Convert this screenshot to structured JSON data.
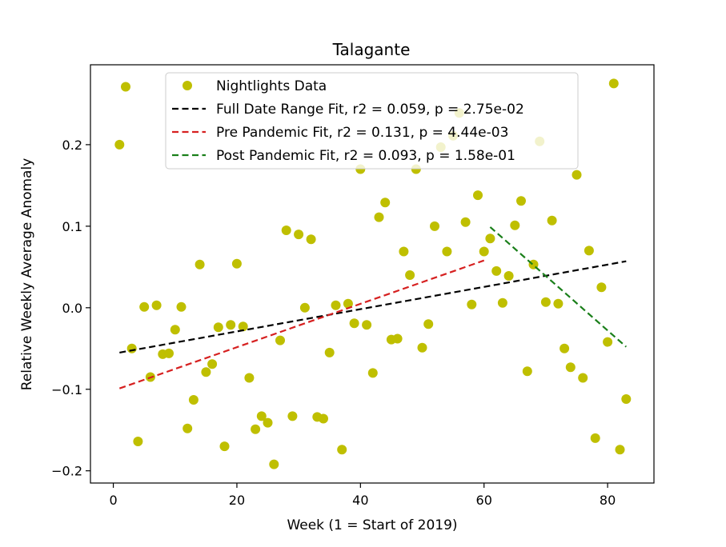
{
  "chart_data": {
    "type": "scatter",
    "title": "Talagante",
    "xlabel": "Week (1 = Start of 2019)",
    "ylabel": "Relative Weekly Average Anomaly",
    "xlim": [
      -3.7,
      87.5
    ],
    "ylim": [
      -0.215,
      0.298
    ],
    "x_ticks": [
      0,
      20,
      40,
      60,
      80
    ],
    "x_tick_labels": [
      "0",
      "20",
      "40",
      "60",
      "80"
    ],
    "y_ticks": [
      -0.2,
      -0.1,
      0.0,
      0.1,
      0.2
    ],
    "y_tick_labels": [
      "−0.2",
      "−0.1",
      "0.0",
      "0.1",
      "0.2"
    ],
    "grid": false,
    "legend_position": "top-center",
    "colors": {
      "points": "#bfbf00",
      "full_fit": "#000000",
      "pre_fit": "#d62020",
      "post_fit": "#1a7f1a"
    },
    "series": [
      {
        "name": "Nightlights Data",
        "kind": "points",
        "points": [
          [
            1,
            0.2
          ],
          [
            2,
            0.271
          ],
          [
            3,
            -0.05
          ],
          [
            4,
            -0.164
          ],
          [
            5,
            0.001
          ],
          [
            6,
            -0.085
          ],
          [
            7,
            0.003
          ],
          [
            8,
            -0.057
          ],
          [
            9,
            -0.056
          ],
          [
            10,
            -0.027
          ],
          [
            11,
            0.001
          ],
          [
            12,
            -0.148
          ],
          [
            13,
            -0.113
          ],
          [
            14,
            0.053
          ],
          [
            15,
            -0.079
          ],
          [
            16,
            -0.069
          ],
          [
            17,
            -0.024
          ],
          [
            18,
            -0.17
          ],
          [
            19,
            -0.021
          ],
          [
            20,
            0.054
          ],
          [
            21,
            -0.023
          ],
          [
            22,
            -0.086
          ],
          [
            23,
            -0.149
          ],
          [
            24,
            -0.133
          ],
          [
            25,
            -0.141
          ],
          [
            26,
            -0.192
          ],
          [
            27,
            -0.04
          ],
          [
            28,
            0.095
          ],
          [
            29,
            -0.133
          ],
          [
            30,
            0.09
          ],
          [
            31,
            0.0
          ],
          [
            32,
            0.084
          ],
          [
            33,
            -0.134
          ],
          [
            34,
            -0.136
          ],
          [
            35,
            -0.055
          ],
          [
            36,
            0.003
          ],
          [
            37,
            -0.174
          ],
          [
            38,
            0.005
          ],
          [
            39,
            -0.019
          ],
          [
            40,
            0.17
          ],
          [
            41,
            -0.021
          ],
          [
            42,
            -0.08
          ],
          [
            43,
            0.111
          ],
          [
            44,
            0.129
          ],
          [
            45,
            -0.039
          ],
          [
            46,
            -0.038
          ],
          [
            47,
            0.069
          ],
          [
            48,
            0.04
          ],
          [
            49,
            0.17
          ],
          [
            50,
            -0.049
          ],
          [
            51,
            -0.02
          ],
          [
            52,
            0.1
          ],
          [
            53,
            0.197
          ],
          [
            54,
            0.069
          ],
          [
            55,
            0.211
          ],
          [
            56,
            0.239
          ],
          [
            57,
            0.105
          ],
          [
            58,
            0.004
          ],
          [
            59,
            0.138
          ],
          [
            60,
            0.069
          ],
          [
            61,
            0.085
          ],
          [
            62,
            0.045
          ],
          [
            63,
            0.006
          ],
          [
            64,
            0.039
          ],
          [
            65,
            0.101
          ],
          [
            66,
            0.131
          ],
          [
            67,
            -0.078
          ],
          [
            68,
            0.053
          ],
          [
            69,
            0.204
          ],
          [
            70,
            0.007
          ],
          [
            71,
            0.107
          ],
          [
            72,
            0.005
          ],
          [
            73,
            -0.05
          ],
          [
            74,
            -0.073
          ],
          [
            75,
            0.163
          ],
          [
            76,
            -0.086
          ],
          [
            77,
            0.07
          ],
          [
            78,
            -0.16
          ],
          [
            79,
            0.025
          ],
          [
            80,
            -0.042
          ],
          [
            81,
            0.275
          ],
          [
            82,
            -0.174
          ],
          [
            83,
            -0.112
          ]
        ]
      },
      {
        "name": "Full Date Range Fit, r2 = 0.059, p = 2.75e-02",
        "kind": "line",
        "x": [
          1,
          83
        ],
        "y": [
          -0.055,
          0.057
        ]
      },
      {
        "name": "Pre Pandemic Fit, r2 = 0.131, p = 4.44e-03",
        "kind": "line",
        "x": [
          1,
          60
        ],
        "y": [
          -0.099,
          0.058
        ]
      },
      {
        "name": "Post Pandemic Fit, r2 = 0.093, p = 1.58e-01",
        "kind": "line",
        "x": [
          61,
          83
        ],
        "y": [
          0.099,
          -0.048
        ]
      }
    ]
  }
}
